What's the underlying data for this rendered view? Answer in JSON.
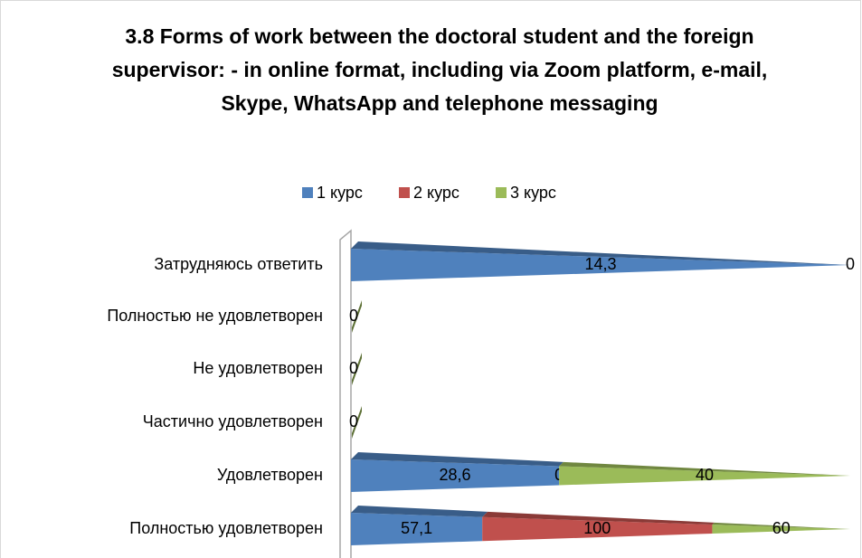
{
  "chart_data": {
    "type": "bar3d_stacked100",
    "orientation": "horizontal",
    "title": "3.8 Forms of work between the doctoral student and the foreign supervisor: - in online format, including via Zoom platform, e-mail, Skype, WhatsApp and telephone messaging",
    "categories": [
      "Затрудняюсь ответить",
      "Полностью не удовлетворен",
      "Не удовлетворен",
      "Частично удовлетворен",
      "Удовлетворен",
      "Полностью удовлетворен"
    ],
    "series": [
      {
        "name": "1 курс",
        "color": "#4f81bd",
        "values": [
          14.3,
          null,
          null,
          null,
          28.6,
          57.1
        ],
        "value_labels": [
          "14,3",
          null,
          null,
          null,
          "28,6",
          "57,1"
        ]
      },
      {
        "name": "2 курс",
        "color": "#c0504d",
        "values": [
          0,
          null,
          null,
          null,
          0,
          100
        ]
      },
      {
        "name": "3 курс",
        "color": "#9bbb59",
        "values": [
          null,
          0,
          0,
          0,
          40,
          60
        ]
      }
    ],
    "legend": "top"
  }
}
